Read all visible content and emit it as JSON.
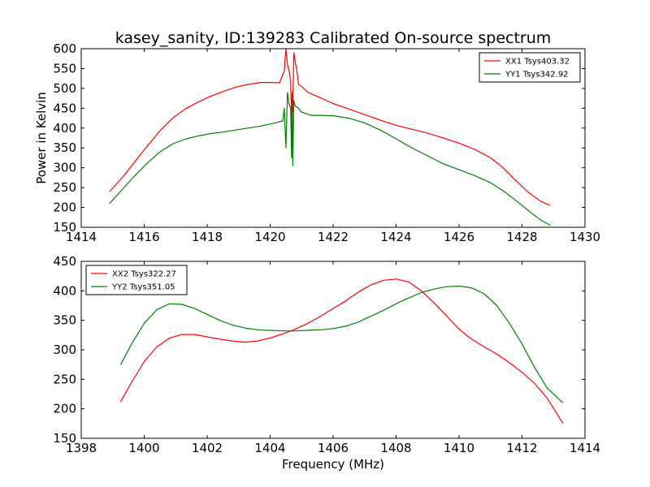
{
  "figure": {
    "title": "kasey_sanity, ID:139283 Calibrated On-source spectrum",
    "xlabel": "Frequency (MHz)",
    "ylabel": "Power in Kelvin"
  },
  "chart_data": [
    {
      "type": "line",
      "title": "kasey_sanity, ID:139283 Calibrated On-source spectrum",
      "xlabel": "",
      "ylabel": "Power in Kelvin",
      "xlim": [
        1414,
        1430
      ],
      "ylim": [
        150,
        600
      ],
      "xticks": [
        1414,
        1416,
        1418,
        1420,
        1422,
        1424,
        1426,
        1428,
        1430
      ],
      "yticks": [
        150,
        200,
        250,
        300,
        350,
        400,
        450,
        500,
        550,
        600
      ],
      "legend_position": "top-right",
      "series": [
        {
          "name": "XX1 Tsys403.32",
          "color": "#ff0000",
          "x": [
            1414.9,
            1415.3,
            1415.7,
            1416.1,
            1416.5,
            1416.9,
            1417.3,
            1417.7,
            1418.1,
            1418.5,
            1418.9,
            1419.3,
            1419.7,
            1420.0,
            1420.3,
            1420.45,
            1420.5,
            1420.55,
            1420.6,
            1420.65,
            1420.68,
            1420.7,
            1420.72,
            1420.75,
            1420.8,
            1420.85,
            1420.9,
            1421.0,
            1421.2,
            1421.6,
            1422.0,
            1422.5,
            1423.0,
            1423.5,
            1424.0,
            1424.5,
            1425.0,
            1425.5,
            1426.0,
            1426.5,
            1427.0,
            1427.4,
            1427.8,
            1428.2,
            1428.6,
            1428.9
          ],
          "values": [
            240,
            275,
            315,
            355,
            393,
            425,
            448,
            465,
            480,
            492,
            503,
            510,
            515,
            515,
            514,
            545,
            600,
            560,
            545,
            520,
            420,
            485,
            440,
            590,
            565,
            545,
            510,
            505,
            490,
            476,
            462,
            448,
            434,
            420,
            407,
            397,
            387,
            375,
            362,
            346,
            325,
            300,
            268,
            238,
            215,
            205
          ]
        },
        {
          "name": "YY1 Tsys342.92",
          "color": "#008000",
          "x": [
            1414.9,
            1415.3,
            1415.7,
            1416.1,
            1416.5,
            1416.9,
            1417.3,
            1417.7,
            1418.1,
            1418.5,
            1418.9,
            1419.3,
            1419.7,
            1420.1,
            1420.4,
            1420.45,
            1420.5,
            1420.55,
            1420.6,
            1420.65,
            1420.68,
            1420.7,
            1420.72,
            1420.75,
            1420.8,
            1420.9,
            1421.0,
            1421.3,
            1421.6,
            1422.0,
            1422.5,
            1423.0,
            1423.5,
            1424.0,
            1424.5,
            1425.0,
            1425.5,
            1426.0,
            1426.5,
            1427.0,
            1427.4,
            1427.8,
            1428.2,
            1428.6,
            1428.9
          ],
          "values": [
            210,
            245,
            280,
            312,
            340,
            360,
            372,
            380,
            386,
            390,
            395,
            400,
            405,
            412,
            418,
            450,
            350,
            490,
            460,
            450,
            325,
            490,
            305,
            470,
            455,
            450,
            440,
            432,
            432,
            431,
            425,
            413,
            395,
            373,
            350,
            330,
            310,
            295,
            280,
            262,
            242,
            218,
            192,
            168,
            155
          ]
        }
      ]
    },
    {
      "type": "line",
      "title": "",
      "xlabel": "Frequency (MHz)",
      "ylabel": "",
      "xlim": [
        1398,
        1414
      ],
      "ylim": [
        150,
        450
      ],
      "xticks": [
        1398,
        1400,
        1402,
        1404,
        1406,
        1408,
        1410,
        1412,
        1414
      ],
      "yticks": [
        150,
        200,
        250,
        300,
        350,
        400,
        450
      ],
      "legend_position": "top-left",
      "series": [
        {
          "name": "XX2 Tsys322.27",
          "color": "#ff0000",
          "x": [
            1399.25,
            1399.6,
            1400.0,
            1400.4,
            1400.8,
            1401.2,
            1401.6,
            1402.0,
            1402.4,
            1402.8,
            1403.2,
            1403.6,
            1404.0,
            1404.4,
            1404.8,
            1405.2,
            1405.6,
            1406.0,
            1406.4,
            1406.8,
            1407.2,
            1407.6,
            1408.0,
            1408.4,
            1408.8,
            1409.2,
            1409.6,
            1410.0,
            1410.4,
            1410.8,
            1411.2,
            1411.6,
            1412.0,
            1412.4,
            1412.8,
            1413.3
          ],
          "values": [
            212,
            245,
            280,
            305,
            320,
            326,
            326,
            322,
            318,
            315,
            313,
            315,
            320,
            327,
            335,
            345,
            357,
            370,
            383,
            398,
            410,
            418,
            420,
            415,
            400,
            380,
            358,
            335,
            318,
            305,
            293,
            278,
            262,
            243,
            218,
            175
          ]
        },
        {
          "name": "YY2 Tsys351.05",
          "color": "#008000",
          "x": [
            1399.25,
            1399.6,
            1400.0,
            1400.4,
            1400.8,
            1401.2,
            1401.6,
            1402.0,
            1402.4,
            1402.8,
            1403.2,
            1403.6,
            1404.0,
            1404.4,
            1404.8,
            1405.2,
            1405.6,
            1406.0,
            1406.4,
            1406.8,
            1407.2,
            1407.6,
            1408.0,
            1408.4,
            1408.8,
            1409.2,
            1409.6,
            1410.0,
            1410.4,
            1410.8,
            1411.2,
            1411.6,
            1412.0,
            1412.4,
            1412.8,
            1413.3
          ],
          "values": [
            275,
            310,
            345,
            368,
            378,
            377,
            370,
            360,
            350,
            342,
            337,
            334,
            333,
            332,
            332,
            333,
            334,
            336,
            340,
            347,
            357,
            367,
            378,
            388,
            397,
            403,
            407,
            408,
            405,
            395,
            375,
            345,
            310,
            270,
            235,
            210
          ]
        }
      ]
    }
  ]
}
